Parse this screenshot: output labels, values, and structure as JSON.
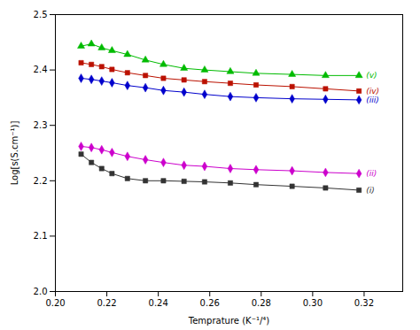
{
  "chart_data": {
    "type": "line",
    "xlabel": "Temprature (K⁻¹/⁴)",
    "ylabel": "Log[s(S.cm⁻¹)]",
    "xlim": [
      0.2,
      0.335
    ],
    "ylim": [
      2.0,
      2.5
    ],
    "xticks": [
      {
        "value": 0.2,
        "label": "0.20"
      },
      0.22,
      0.24,
      0.26,
      0.28,
      {
        "value": 0.3,
        "label": "0.30"
      },
      0.32
    ],
    "yticks": [
      {
        "value": 2.0,
        "label": "2.0"
      },
      2.1,
      2.2,
      2.3,
      2.4,
      2.5
    ],
    "x": [
      0.21,
      0.214,
      0.218,
      0.222,
      0.228,
      0.235,
      0.242,
      0.25,
      0.258,
      0.268,
      0.278,
      0.292,
      0.305,
      0.318
    ],
    "series": [
      {
        "name": "(v)",
        "color": "#00bb00",
        "marker": "triangle",
        "values": [
          2.443,
          2.447,
          2.44,
          2.435,
          2.428,
          2.418,
          2.41,
          2.403,
          2.4,
          2.397,
          2.394,
          2.392,
          2.39,
          2.39
        ]
      },
      {
        "name": "(iv)",
        "color": "#bb1100",
        "marker": "square",
        "values": [
          2.413,
          2.41,
          2.406,
          2.401,
          2.395,
          2.39,
          2.385,
          2.382,
          2.379,
          2.376,
          2.373,
          2.37,
          2.366,
          2.362
        ]
      },
      {
        "name": "(iii)",
        "color": "#0000cc",
        "marker": "diamond",
        "values": [
          2.385,
          2.383,
          2.38,
          2.377,
          2.372,
          2.368,
          2.363,
          2.36,
          2.356,
          2.352,
          2.35,
          2.348,
          2.347,
          2.346
        ]
      },
      {
        "name": "(ii)",
        "color": "#cc00cc",
        "marker": "diamond",
        "values": [
          2.262,
          2.26,
          2.256,
          2.251,
          2.244,
          2.238,
          2.233,
          2.228,
          2.226,
          2.222,
          2.22,
          2.218,
          2.215,
          2.213
        ]
      },
      {
        "name": "(i)",
        "color": "#333333",
        "marker": "square",
        "values": [
          2.248,
          2.233,
          2.222,
          2.213,
          2.204,
          2.2,
          2.2,
          2.199,
          2.198,
          2.196,
          2.193,
          2.19,
          2.187,
          2.183
        ]
      }
    ]
  }
}
